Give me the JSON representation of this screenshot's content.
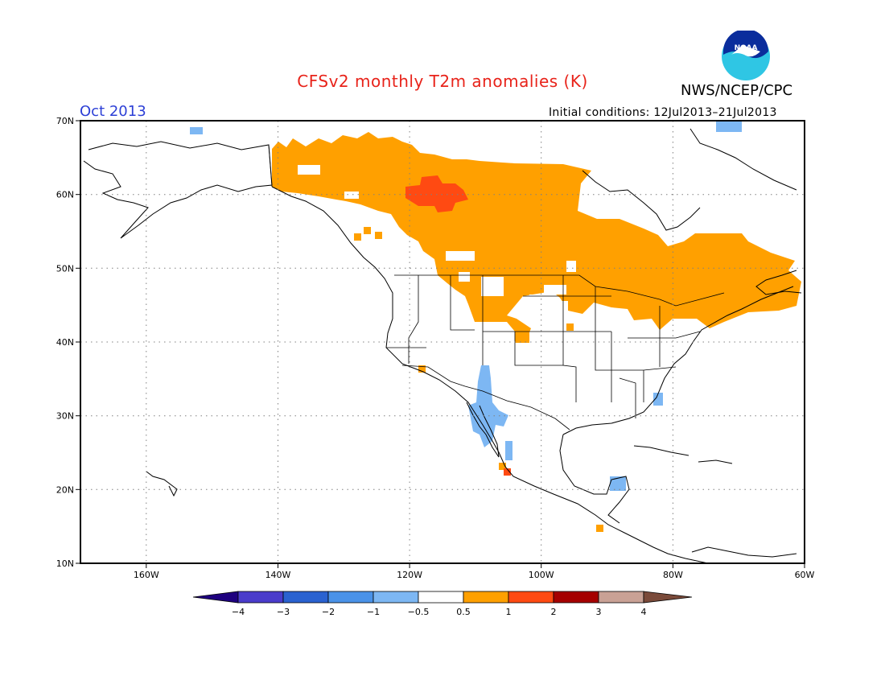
{
  "header": {
    "title": "CFSv2 monthly T2m anomalies (K)",
    "org": "NWS/NCEP/CPC",
    "month": "Oct 2013",
    "initial_conditions": "Initial conditions: 12Jul2013–21Jul2013",
    "logo_text": "NOAA"
  },
  "map": {
    "lon_range": [
      -170,
      -60
    ],
    "lat_range": [
      10,
      70
    ],
    "lat_labels": [
      "70N",
      "60N",
      "50N",
      "40N",
      "30N",
      "20N",
      "10N"
    ],
    "lon_labels": [
      "160W",
      "140W",
      "120W",
      "100W",
      "80W",
      "60W"
    ],
    "grid": "dotted"
  },
  "colorbar": {
    "labels": [
      "−4",
      "−3",
      "−2",
      "−1",
      "−0.5",
      "0.5",
      "1",
      "2",
      "3",
      "4"
    ],
    "colors": [
      "#1e007f",
      "#4a3ccb",
      "#2a62d0",
      "#4a92e8",
      "#7db7f3",
      "#ffffff",
      "#ffa000",
      "#ff4a12",
      "#a50000",
      "#c9a195",
      "#7a4a3a"
    ]
  }
}
